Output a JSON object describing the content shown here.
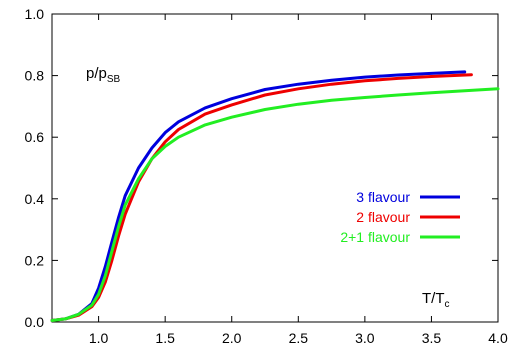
{
  "chart_data": {
    "type": "line",
    "title": "",
    "ylabel": {
      "main": "p/p",
      "sub": "SB"
    },
    "xlabel": {
      "main": "T/T",
      "sub": "c"
    },
    "xlim": [
      0.65,
      4.0
    ],
    "ylim": [
      0.0,
      1.0
    ],
    "x_ticks": [
      1.0,
      1.5,
      2.0,
      2.5,
      3.0,
      3.5,
      4.0
    ],
    "x_tick_labels": [
      "1.0",
      "1.5",
      "2.0",
      "2.5",
      "3.0",
      "3.5",
      "4.0"
    ],
    "y_ticks": [
      0.0,
      0.2,
      0.4,
      0.6,
      0.8,
      1.0
    ],
    "y_tick_labels": [
      "0.0",
      "0.2",
      "0.4",
      "0.6",
      "0.8",
      "1.0"
    ],
    "grid": false,
    "legend_position": "right-middle",
    "series": [
      {
        "name": "3 flavour",
        "color": "#0000dd",
        "points": [
          [
            0.65,
            0.005
          ],
          [
            0.75,
            0.01
          ],
          [
            0.85,
            0.025
          ],
          [
            0.95,
            0.06
          ],
          [
            1.0,
            0.11
          ],
          [
            1.05,
            0.18
          ],
          [
            1.1,
            0.26
          ],
          [
            1.15,
            0.34
          ],
          [
            1.2,
            0.41
          ],
          [
            1.3,
            0.5
          ],
          [
            1.4,
            0.565
          ],
          [
            1.5,
            0.615
          ],
          [
            1.6,
            0.65
          ],
          [
            1.8,
            0.695
          ],
          [
            2.0,
            0.725
          ],
          [
            2.25,
            0.755
          ],
          [
            2.5,
            0.772
          ],
          [
            2.75,
            0.785
          ],
          [
            3.0,
            0.795
          ],
          [
            3.25,
            0.802
          ],
          [
            3.5,
            0.807
          ],
          [
            3.75,
            0.812
          ]
        ]
      },
      {
        "name": "2 flavour",
        "color": "#ee0000",
        "points": [
          [
            0.65,
            0.005
          ],
          [
            0.75,
            0.01
          ],
          [
            0.85,
            0.022
          ],
          [
            0.95,
            0.05
          ],
          [
            1.0,
            0.08
          ],
          [
            1.05,
            0.13
          ],
          [
            1.1,
            0.2
          ],
          [
            1.15,
            0.28
          ],
          [
            1.2,
            0.35
          ],
          [
            1.3,
            0.455
          ],
          [
            1.4,
            0.53
          ],
          [
            1.5,
            0.585
          ],
          [
            1.6,
            0.625
          ],
          [
            1.8,
            0.675
          ],
          [
            2.0,
            0.705
          ],
          [
            2.25,
            0.737
          ],
          [
            2.5,
            0.757
          ],
          [
            2.75,
            0.772
          ],
          [
            3.0,
            0.783
          ],
          [
            3.25,
            0.791
          ],
          [
            3.5,
            0.797
          ],
          [
            3.8,
            0.803
          ]
        ]
      },
      {
        "name": "2+1 flavour",
        "color": "#22ee22",
        "points": [
          [
            0.65,
            0.005
          ],
          [
            0.75,
            0.01
          ],
          [
            0.85,
            0.025
          ],
          [
            0.95,
            0.055
          ],
          [
            1.0,
            0.09
          ],
          [
            1.05,
            0.15
          ],
          [
            1.1,
            0.23
          ],
          [
            1.15,
            0.31
          ],
          [
            1.2,
            0.38
          ],
          [
            1.3,
            0.465
          ],
          [
            1.4,
            0.53
          ],
          [
            1.5,
            0.57
          ],
          [
            1.6,
            0.6
          ],
          [
            1.8,
            0.64
          ],
          [
            2.0,
            0.665
          ],
          [
            2.25,
            0.69
          ],
          [
            2.5,
            0.707
          ],
          [
            2.75,
            0.72
          ],
          [
            3.0,
            0.729
          ],
          [
            3.25,
            0.737
          ],
          [
            3.5,
            0.744
          ],
          [
            3.75,
            0.751
          ],
          [
            4.0,
            0.757
          ]
        ]
      }
    ]
  }
}
